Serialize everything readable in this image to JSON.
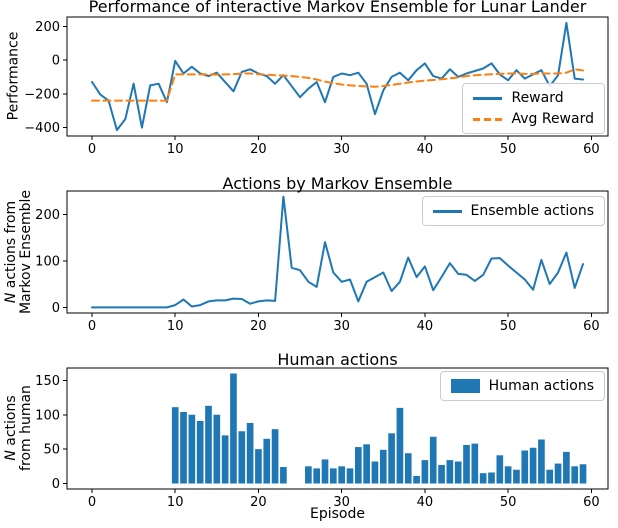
{
  "figure": {
    "background": "#ffffff",
    "axis_color": "#000000",
    "blue": "#1f77b4",
    "orange": "#ff7f0e"
  },
  "xlabel": "Episode",
  "chart_data": [
    {
      "id": "performance",
      "type": "line",
      "title": "Performance of interactive Markov Ensemble for Lunar Lander",
      "ylabel": "Performance",
      "grid": false,
      "x": {
        "start": 0,
        "step": 1,
        "count": 60
      },
      "xlim": [
        -3,
        62
      ],
      "ylim": [
        -450,
        255
      ],
      "xticks": [
        0,
        10,
        20,
        30,
        40,
        50,
        60
      ],
      "xtick_labels": [
        "0",
        "10",
        "20",
        "30",
        "40",
        "50",
        "60"
      ],
      "yticks": [
        200,
        0,
        -200,
        -400
      ],
      "ytick_labels": [
        "200",
        "0",
        "−200",
        "−400"
      ],
      "legend": {
        "position": "lower right"
      },
      "series": [
        {
          "id": "reward",
          "name": "Reward",
          "color": "#1f77b4",
          "line_style": "solid",
          "values": [
            -130,
            -205,
            -240,
            -415,
            -350,
            -140,
            -400,
            -150,
            -140,
            -250,
            -5,
            -80,
            -40,
            -80,
            -95,
            -75,
            -130,
            -185,
            -70,
            -55,
            -80,
            -95,
            -140,
            -90,
            -155,
            -220,
            -170,
            -130,
            -250,
            -100,
            -80,
            -90,
            -75,
            -140,
            -320,
            -180,
            -100,
            -75,
            -120,
            -60,
            -20,
            -95,
            -110,
            -55,
            -100,
            -80,
            -65,
            -50,
            -20,
            -85,
            -120,
            -60,
            -110,
            -85,
            -60,
            -155,
            -90,
            220,
            -110,
            -115
          ]
        },
        {
          "id": "avg-reward",
          "name": "Avg Reward",
          "color": "#ff7f0e",
          "line_style": "dashed",
          "values": [
            -240,
            -240,
            -240,
            -240,
            -240,
            -240,
            -240,
            -240,
            -240,
            -240,
            -85,
            -85,
            -85,
            -85,
            -85,
            -86,
            -85,
            -84,
            -80,
            -80,
            -84,
            -87,
            -90,
            -92,
            -95,
            -100,
            -106,
            -115,
            -128,
            -138,
            -145,
            -150,
            -154,
            -156,
            -158,
            -154,
            -148,
            -140,
            -133,
            -127,
            -122,
            -118,
            -114,
            -109,
            -103,
            -95,
            -90,
            -87,
            -84,
            -82,
            -80,
            -80,
            -82,
            -82,
            -80,
            -80,
            -80,
            -75,
            -55,
            -62
          ]
        }
      ]
    },
    {
      "id": "ensemble-actions",
      "type": "line",
      "title": "Actions by Markov Ensemble",
      "ylabel": {
        "italic": "N",
        "line1": " actions from",
        "line2": "Markov Ensemble"
      },
      "grid": false,
      "x": {
        "start": 0,
        "step": 1,
        "count": 60
      },
      "xlim": [
        -3,
        62
      ],
      "ylim": [
        -12,
        250
      ],
      "xticks": [
        0,
        10,
        20,
        30,
        40,
        50,
        60
      ],
      "xtick_labels": [
        "0",
        "10",
        "20",
        "30",
        "40",
        "50",
        "60"
      ],
      "yticks": [
        0,
        100,
        200
      ],
      "ytick_labels": [
        "0",
        "100",
        "200"
      ],
      "legend": {
        "position": "upper right"
      },
      "series": [
        {
          "id": "ensemble",
          "name": "Ensemble actions",
          "color": "#1f77b4",
          "line_style": "solid",
          "values": [
            0,
            0,
            0,
            0,
            0,
            0,
            0,
            0,
            0,
            0,
            5,
            17,
            2,
            5,
            13,
            15,
            15,
            19,
            18,
            8,
            13,
            15,
            14,
            238,
            85,
            80,
            55,
            44,
            140,
            75,
            55,
            60,
            13,
            55,
            65,
            75,
            35,
            55,
            107,
            65,
            88,
            37,
            65,
            95,
            72,
            70,
            57,
            70,
            105,
            106,
            90,
            75,
            60,
            38,
            102,
            50,
            75,
            118,
            42,
            93
          ]
        }
      ]
    },
    {
      "id": "human-actions",
      "type": "bar",
      "title": "Human actions",
      "ylabel": {
        "italic": "N",
        "line1": " actions",
        "line2": "from human"
      },
      "grid": false,
      "x": {
        "start": 0,
        "step": 1,
        "count": 60
      },
      "xlim": [
        -3,
        62
      ],
      "ylim": [
        -8,
        168
      ],
      "xticks": [
        0,
        10,
        20,
        30,
        40,
        50,
        60
      ],
      "xtick_labels": [
        "0",
        "10",
        "20",
        "30",
        "40",
        "50",
        "60"
      ],
      "yticks": [
        0,
        50,
        100,
        150
      ],
      "ytick_labels": [
        "0",
        "50",
        "100",
        "150"
      ],
      "legend": {
        "position": "upper right"
      },
      "bar_width": 0.8,
      "series": [
        {
          "id": "human",
          "name": "Human actions",
          "color": "#1f77b4",
          "values": [
            0,
            0,
            0,
            0,
            0,
            0,
            0,
            0,
            0,
            0,
            111,
            104,
            100,
            91,
            113,
            100,
            70,
            160,
            76,
            88,
            50,
            65,
            79,
            24,
            0,
            0,
            25,
            22,
            35,
            22,
            25,
            22,
            53,
            57,
            32,
            49,
            73,
            110,
            44,
            11,
            34,
            68,
            27,
            34,
            32,
            56,
            58,
            15,
            16,
            41,
            25,
            20,
            48,
            52,
            64,
            20,
            29,
            46,
            25,
            28
          ]
        }
      ]
    }
  ]
}
